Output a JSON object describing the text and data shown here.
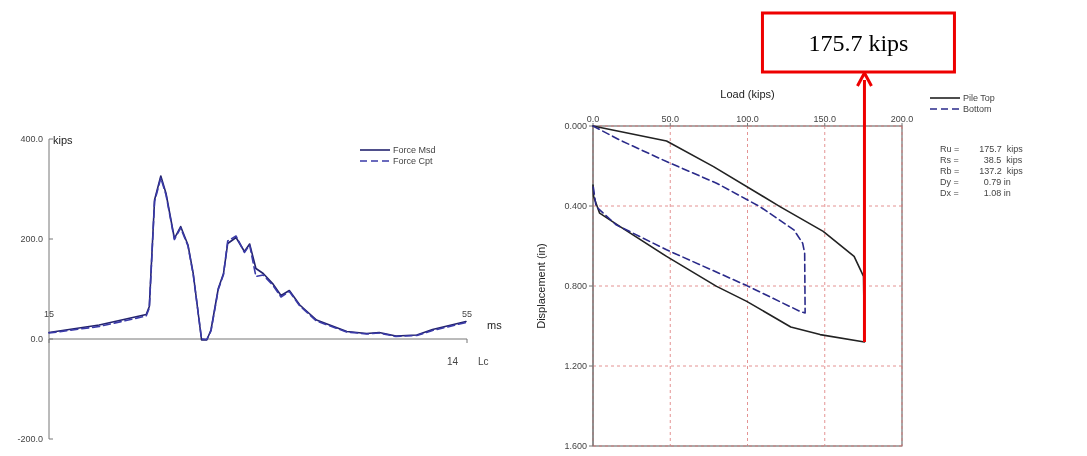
{
  "chart_data": [
    {
      "type": "line",
      "ylabel": "kips",
      "xlabel": "ms",
      "xlim": [
        15,
        55
      ],
      "xticks": [
        15,
        55
      ],
      "ylim": [
        -200,
        400
      ],
      "yticks": [
        {
          "value": -200,
          "label": "-200.0"
        },
        {
          "value": 0,
          "label": "0.0"
        },
        {
          "value": 200,
          "label": "200.0"
        },
        {
          "value": 400,
          "label": "400.0"
        }
      ],
      "legend": "top right",
      "annotations": [
        "14",
        "Lc"
      ],
      "series": [
        {
          "name": "Force Msd",
          "color": "#23236e",
          "line_style": "solid",
          "x": [
            15,
            19.8,
            24.3,
            24.6,
            25.1,
            25.7,
            26.2,
            27.0,
            27.6,
            28.3,
            28.8,
            29.6,
            30.1,
            30.5,
            31.2,
            31.7,
            32.1,
            32.9,
            33.7,
            34.2,
            34.8,
            35.5,
            36.4,
            37.2,
            38.0,
            39.0,
            40.6,
            43.5,
            45.4,
            46.6,
            48.2,
            50.2,
            51.7,
            54.9
          ],
          "values": [
            13,
            28,
            49,
            65,
            278,
            326,
            291,
            201,
            225,
            188,
            131,
            -2,
            -2,
            18,
            101,
            131,
            191,
            203,
            175,
            190,
            141,
            131,
            111,
            87,
            97,
            68,
            38,
            15,
            11,
            13,
            6,
            8,
            19,
            35
          ]
        },
        {
          "name": "Force Cpt",
          "color": "#3a3aa8",
          "line_style": "dashed",
          "x": [
            15,
            19.8,
            24.3,
            24.6,
            25.1,
            25.7,
            26.2,
            27.0,
            27.6,
            28.3,
            28.8,
            29.6,
            30.1,
            30.5,
            31.2,
            31.7,
            32.1,
            32.9,
            33.7,
            34.2,
            34.8,
            35.5,
            36.4,
            37.2,
            38.0,
            39.0,
            40.6,
            43.5,
            45.4,
            46.6,
            48.2,
            50.2,
            51.7,
            54.9
          ],
          "values": [
            12,
            25,
            46,
            62,
            275,
            322,
            288,
            199,
            222,
            186,
            129,
            0,
            -1,
            16,
            99,
            129,
            196,
            206,
            173,
            188,
            125,
            128,
            108,
            84,
            95,
            66,
            36,
            14,
            10,
            12,
            5,
            7,
            17,
            33
          ]
        }
      ]
    },
    {
      "type": "line",
      "xlabel": "Load (kips)",
      "ylabel": "Displacement (in)",
      "xlim": [
        0,
        200
      ],
      "xticks": [
        {
          "value": 0,
          "label": "0.0"
        },
        {
          "value": 50,
          "label": "50.0"
        },
        {
          "value": 100,
          "label": "100.0"
        },
        {
          "value": 150,
          "label": "150.0"
        },
        {
          "value": 200,
          "label": "200.0"
        }
      ],
      "ylim": [
        1.6,
        0
      ],
      "yticks": [
        {
          "value": 0,
          "label": "0.000"
        },
        {
          "value": 0.4,
          "label": "0.400"
        },
        {
          "value": 0.8,
          "label": "0.800"
        },
        {
          "value": 1.2,
          "label": "1.200"
        },
        {
          "value": 1.6,
          "label": "1.600"
        }
      ],
      "grid": true,
      "legend": "top right",
      "annotations": [
        {
          "text": "175.7 kips",
          "x": 175.7,
          "y": 1.08
        },
        "Ru =        175.7  kips",
        "Rs =          38.5  kips",
        "Rb =        137.2  kips",
        "Dy =          0.79 in",
        "Dx =          1.08 in"
      ],
      "series": [
        {
          "name": "Pile Top",
          "color": "#222222",
          "line_style": "solid",
          "x": [
            0,
            47.6,
            78,
            121,
            149,
            169,
            175.1,
            175.7,
            147,
            128,
            99.5,
            80,
            47.6,
            17.3,
            4.3,
            0.4,
            0
          ],
          "values": [
            0,
            0.075,
            0.203,
            0.403,
            0.527,
            0.652,
            0.752,
            1.08,
            1.043,
            1.005,
            0.877,
            0.802,
            0.652,
            0.502,
            0.436,
            0.353,
            0.295
          ]
        },
        {
          "name": "Bottom",
          "color": "#2a2a8a",
          "line_style": "dashed",
          "x": [
            0,
            17.3,
            47.6,
            80,
            108,
            130,
            135.7,
            137,
            137.3,
            134,
            99.5,
            47.6,
            15,
            2,
            0
          ],
          "values": [
            0,
            0.07,
            0.178,
            0.286,
            0.403,
            0.519,
            0.586,
            0.636,
            0.935,
            0.927,
            0.798,
            0.619,
            0.494,
            0.403,
            0.295
          ]
        }
      ]
    }
  ]
}
